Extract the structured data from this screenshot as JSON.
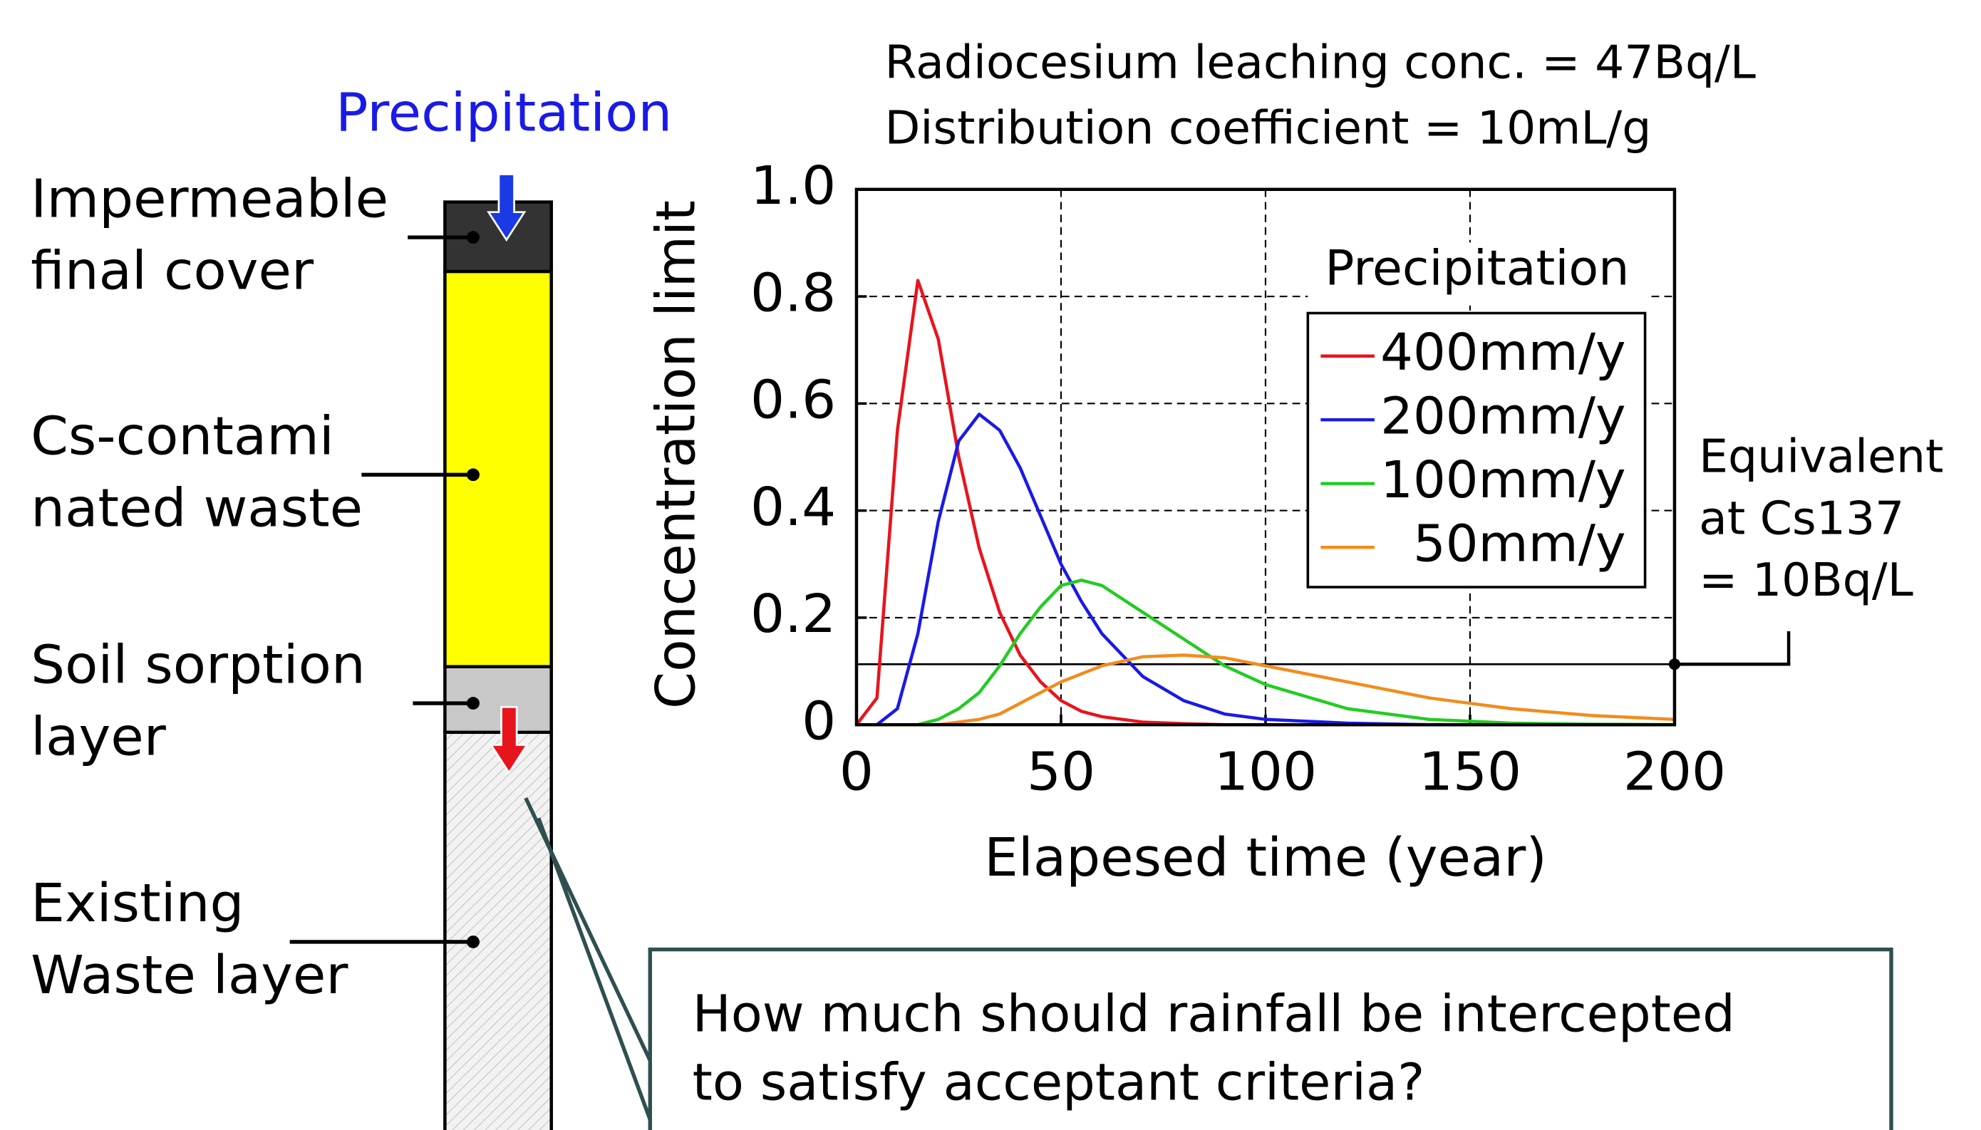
{
  "chart_data": {
    "type": "line",
    "title": [
      "Radiocesium leaching conc. = 47Bq/L",
      "Distribution coefficient = 10mL/g"
    ],
    "x_label": "Elapesed time (year)",
    "y_label": "Concentration limit",
    "legend_title": "Precipitation",
    "legend_position": "upper right",
    "grid": true,
    "x": [
      0,
      5,
      10,
      15,
      20,
      25,
      30,
      35,
      40,
      45,
      50,
      55,
      60,
      70,
      80,
      90,
      100,
      120,
      140,
      160,
      180,
      200
    ],
    "series": [
      {
        "name": "400mm/y",
        "color": "#e8141c",
        "values": [
          0,
          0.05,
          0.55,
          0.83,
          0.72,
          0.5,
          0.33,
          0.21,
          0.13,
          0.08,
          0.045,
          0.025,
          0.015,
          0.005,
          0.002,
          0,
          0,
          0,
          0,
          0,
          0,
          0
        ]
      },
      {
        "name": "200mm/y",
        "color": "#1a1ae6",
        "values": [
          0,
          0,
          0.03,
          0.17,
          0.38,
          0.53,
          0.58,
          0.55,
          0.48,
          0.39,
          0.3,
          0.23,
          0.17,
          0.09,
          0.045,
          0.02,
          0.01,
          0.003,
          0,
          0,
          0,
          0
        ]
      },
      {
        "name": "100mm/y",
        "color": "#22cc22",
        "values": [
          0,
          0,
          0,
          0,
          0.01,
          0.03,
          0.06,
          0.11,
          0.17,
          0.22,
          0.26,
          0.27,
          0.26,
          0.21,
          0.16,
          0.11,
          0.075,
          0.03,
          0.01,
          0.003,
          0.001,
          0
        ]
      },
      {
        "name": "50mm/y",
        "color": "#f28c1c",
        "values": [
          0,
          0,
          0,
          0,
          0,
          0.005,
          0.01,
          0.02,
          0.04,
          0.06,
          0.08,
          0.095,
          0.11,
          0.127,
          0.13,
          0.125,
          0.11,
          0.08,
          0.05,
          0.03,
          0.017,
          0.01
        ]
      }
    ],
    "reference_line": {
      "value": 0.113,
      "label": [
        "Equivalent",
        "at Cs137",
        "= 10Bq/L"
      ]
    },
    "xlim": [
      0,
      200
    ],
    "xticks": [
      0,
      50,
      100,
      150,
      200
    ],
    "ylim": [
      0,
      1.0
    ],
    "yticks": [
      0,
      0.2,
      0.4,
      0.6,
      0.8,
      {
        "value": 1.0,
        "label": "1.0"
      }
    ]
  },
  "diagram": {
    "input": "Precipitation",
    "layers": [
      "Impermeable\nfinal cover",
      "Cs-contami\nnated waste",
      "Soil sorption\nlayer",
      "Existing\nWaste layer"
    ],
    "question": [
      "How much should rainfall be intercepted",
      "to satisfy acceptant criteria?"
    ]
  }
}
